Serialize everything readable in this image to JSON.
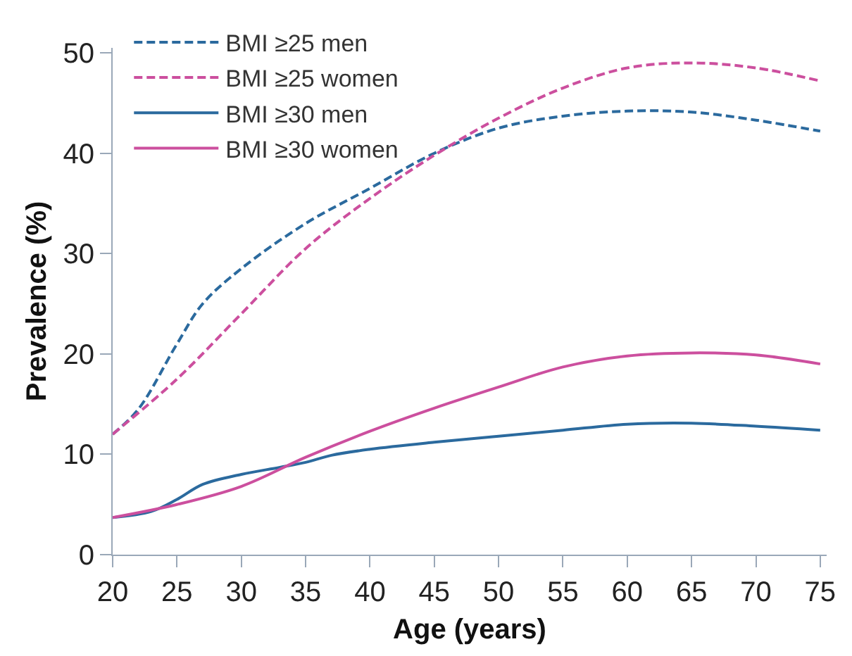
{
  "chart_data": {
    "type": "line",
    "xlabel": "Age (years)",
    "ylabel": "Prevalence (%)",
    "x": [
      20,
      25,
      30,
      35,
      40,
      45,
      50,
      55,
      60,
      65,
      70,
      75
    ],
    "xlim": [
      20,
      75.5
    ],
    "xticks": [
      20,
      25,
      30,
      35,
      40,
      45,
      50,
      55,
      60,
      65,
      70,
      75
    ],
    "ylim": [
      0,
      50.5
    ],
    "yticks": [
      0,
      10,
      20,
      30,
      40,
      50
    ],
    "grid": false,
    "legend": "top left",
    "marker": "none",
    "series": [
      {
        "name": "BMI ≥25 men",
        "color": "#2b6a9e",
        "line_style": "dashed",
        "x": [
          20,
          22,
          25,
          27,
          30,
          35,
          40,
          45,
          50,
          55,
          60,
          65,
          70,
          75
        ],
        "values": [
          12,
          14.5,
          21,
          25,
          28.5,
          33,
          36.5,
          40,
          42.5,
          43.7,
          44.2,
          44.1,
          43.3,
          42.2
        ]
      },
      {
        "name": "BMI ≥25 women",
        "color": "#cc4f9e",
        "line_style": "dashed",
        "values": [
          12,
          17.5,
          24,
          30.5,
          35.5,
          39.8,
          43.5,
          46.5,
          48.5,
          49,
          48.5,
          47.2
        ]
      },
      {
        "name": "BMI ≥30 men",
        "color": "#2b6a9e",
        "line_style": "solid",
        "x": [
          20,
          23,
          25,
          27,
          30,
          33,
          35,
          37,
          40,
          45,
          50,
          55,
          60,
          65,
          70,
          75
        ],
        "values": [
          3.7,
          4.3,
          5.5,
          7,
          8,
          8.7,
          9.2,
          9.9,
          10.5,
          11.2,
          11.8,
          12.4,
          13,
          13.1,
          12.8,
          12.4
        ]
      },
      {
        "name": "BMI ≥30 women",
        "color": "#cc4f9e",
        "line_style": "solid",
        "values": [
          3.7,
          5,
          6.8,
          9.7,
          12.3,
          14.6,
          16.7,
          18.7,
          19.8,
          20.1,
          19.9,
          19
        ]
      }
    ]
  }
}
